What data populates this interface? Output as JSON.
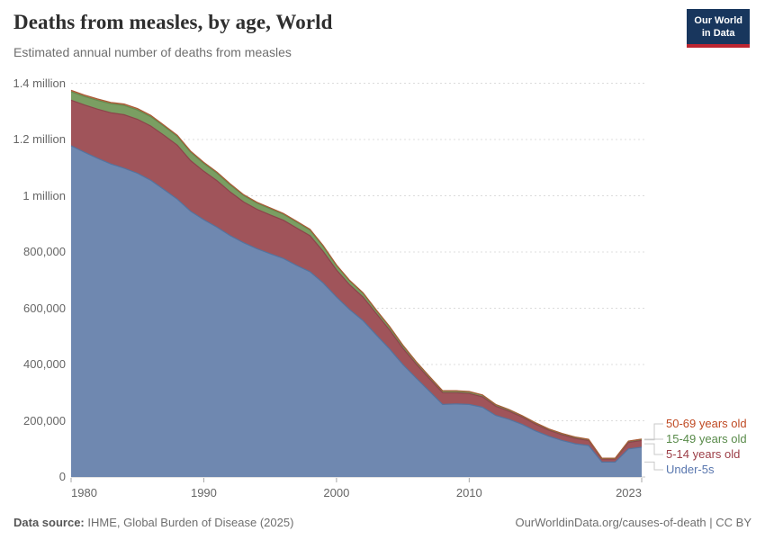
{
  "header": {
    "title": "Deaths from measles, by age, World",
    "subtitle": "Estimated annual number of deaths from measles",
    "logo": {
      "line1": "Our World",
      "line2": "in Data",
      "bg_color": "#18365d",
      "accent_color": "#bc2530"
    }
  },
  "chart_data": {
    "type": "area",
    "stacked": true,
    "title": "Deaths from measles, by age, World",
    "subtitle": "Estimated annual number of deaths from measles",
    "xlabel": "",
    "ylabel": "",
    "ylim": [
      0,
      1400000
    ],
    "grid": "dashed-horizontal",
    "legend_position": "right-of-plot",
    "x": [
      1980,
      1981,
      1982,
      1983,
      1984,
      1985,
      1986,
      1987,
      1988,
      1989,
      1990,
      1991,
      1992,
      1993,
      1994,
      1995,
      1996,
      1997,
      1998,
      1999,
      2000,
      2001,
      2002,
      2003,
      2004,
      2005,
      2006,
      2007,
      2008,
      2009,
      2010,
      2011,
      2012,
      2013,
      2014,
      2015,
      2016,
      2017,
      2018,
      2019,
      2020,
      2021,
      2022,
      2023
    ],
    "series": [
      {
        "name": "Under-5s",
        "fill": "#6f88b0",
        "line": "#54739e",
        "label_color": "#5876ae",
        "values": [
          1178000,
          1155000,
          1133000,
          1113000,
          1098000,
          1080000,
          1055000,
          1022000,
          988000,
          945000,
          915000,
          888000,
          858000,
          833000,
          812000,
          794000,
          777000,
          752000,
          730000,
          690000,
          640000,
          595000,
          556000,
          505000,
          455000,
          400000,
          352000,
          305000,
          258000,
          260000,
          258000,
          248000,
          219000,
          205000,
          187000,
          164000,
          145000,
          130000,
          118000,
          112000,
          53000,
          53000,
          100000,
          106000
        ]
      },
      {
        "name": "5-14 years old",
        "fill": "#a0545a",
        "line": "#8c444b",
        "label_color": "#9c3e47",
        "values": [
          162000,
          168000,
          175000,
          182000,
          190000,
          192000,
          193000,
          193000,
          192000,
          180000,
          172000,
          165000,
          155000,
          145000,
          140000,
          138000,
          136000,
          133000,
          128000,
          112000,
          96000,
          88000,
          84000,
          76000,
          68000,
          58000,
          50000,
          45000,
          42000,
          40000,
          39000,
          37000,
          33000,
          29000,
          26000,
          24000,
          21000,
          20000,
          19000,
          18000,
          11000,
          11000,
          23000,
          24000
        ]
      },
      {
        "name": "15-49 years old",
        "fill": "#7a9e62",
        "line": "#648b50",
        "label_color": "#588a49",
        "values": [
          30000,
          30000,
          31000,
          32000,
          33000,
          33000,
          33000,
          32000,
          31000,
          30000,
          28000,
          27000,
          25000,
          23000,
          22000,
          22000,
          21000,
          21000,
          20000,
          18000,
          16000,
          14000,
          13000,
          11000,
          10000,
          9000,
          8000,
          7000,
          6000,
          6000,
          6000,
          6000,
          5000,
          5000,
          4000,
          4000,
          4000,
          4000,
          4000,
          3000,
          2000,
          2000,
          4000,
          4000
        ]
      },
      {
        "name": "50-69 years old",
        "fill": "#c4714f",
        "line": "#aa5a35",
        "label_color": "#bf4a23",
        "values": [
          5000,
          5000,
          5000,
          5000,
          5000,
          5000,
          5000,
          4000,
          4000,
          4000,
          4000,
          4000,
          4000,
          3000,
          3000,
          3000,
          3000,
          3000,
          3000,
          3000,
          2000,
          2000,
          2000,
          2000,
          2000,
          2000,
          1000,
          1000,
          1000,
          1000,
          1000,
          1000,
          1000,
          1000,
          1000,
          1000,
          1000,
          1000,
          1000,
          1000,
          1000,
          1000,
          1000,
          1000
        ]
      }
    ],
    "yticks": [
      {
        "value": 0,
        "label": "0"
      },
      {
        "value": 200000,
        "label": "200,000"
      },
      {
        "value": 400000,
        "label": "400,000"
      },
      {
        "value": 600000,
        "label": "600,000"
      },
      {
        "value": 800000,
        "label": "800,000"
      },
      {
        "value": 1000000,
        "label": "1 million"
      },
      {
        "value": 1200000,
        "label": "1.2 million"
      },
      {
        "value": 1400000,
        "label": "1.4 million"
      }
    ],
    "xticks": [
      {
        "year": 1980,
        "label": "1980",
        "align": "start"
      },
      {
        "year": 1990,
        "label": "1990",
        "align": "middle"
      },
      {
        "year": 2000,
        "label": "2000",
        "align": "middle"
      },
      {
        "year": 2010,
        "label": "2010",
        "align": "middle"
      },
      {
        "year": 2023,
        "label": "2023",
        "align": "end"
      }
    ],
    "legend_order_top_to_bottom": [
      "50-69 years old",
      "15-49 years old",
      "5-14 years old",
      "Under-5s"
    ]
  },
  "footer": {
    "source_label": "Data source:",
    "source_text": "IHME, Global Burden of Disease (2025)",
    "attribution": "OurWorldinData.org/causes-of-death | CC BY"
  }
}
